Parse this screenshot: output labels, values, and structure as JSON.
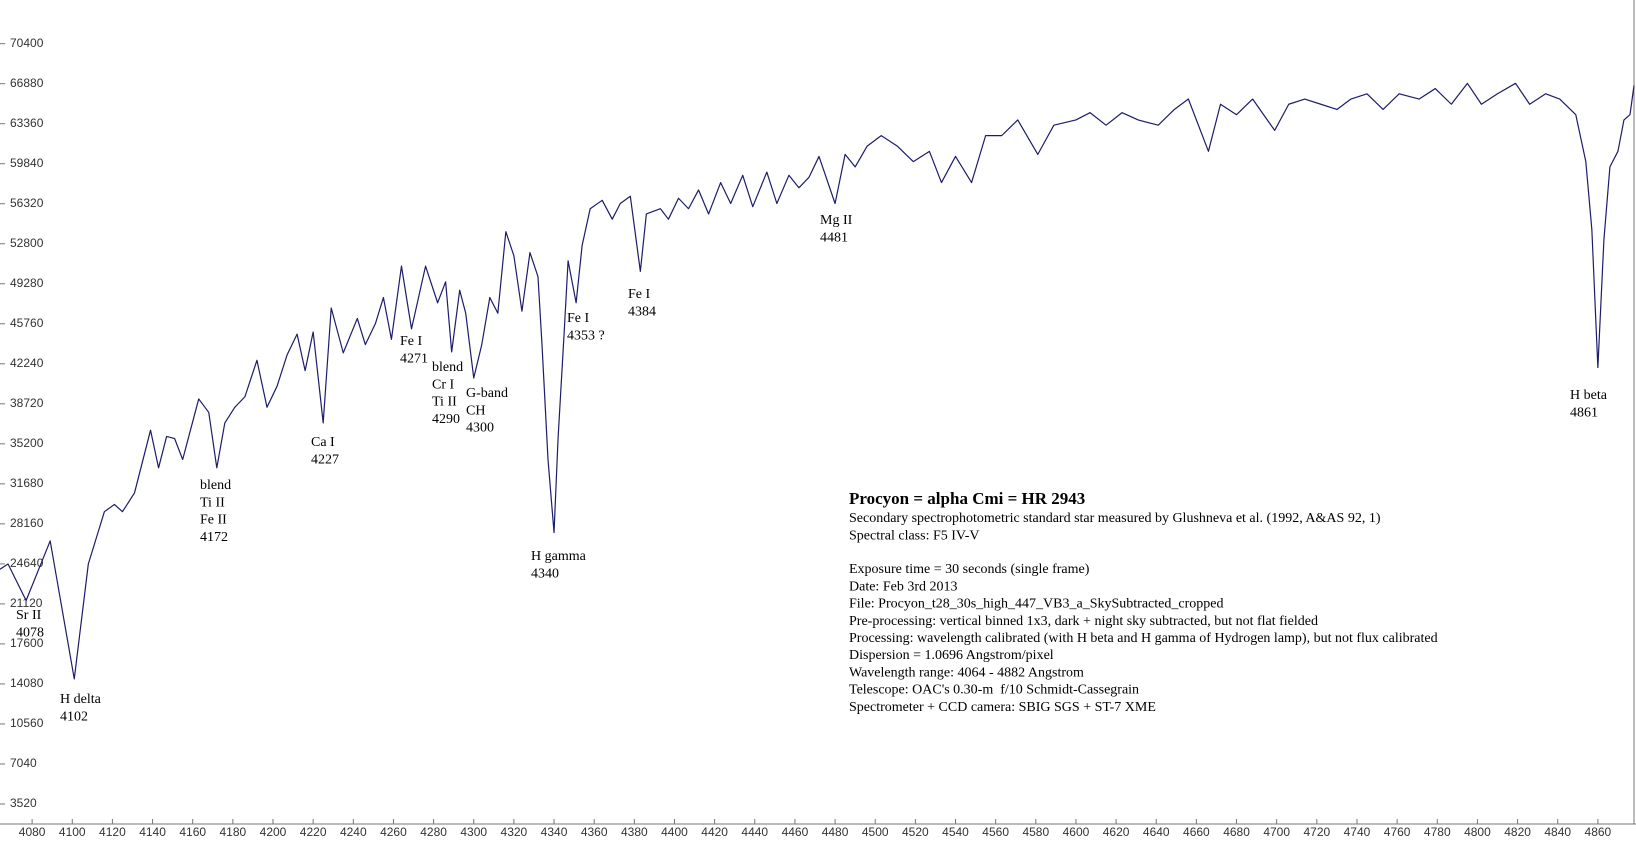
{
  "chart_data": {
    "type": "line",
    "color": "#1c1c6b",
    "xlim": [
      4064,
      4878
    ],
    "ylim": [
      1760,
      74240
    ],
    "xticks": [
      4080,
      4100,
      4120,
      4140,
      4160,
      4180,
      4200,
      4220,
      4240,
      4260,
      4280,
      4300,
      4320,
      4340,
      4360,
      4380,
      4400,
      4420,
      4440,
      4460,
      4480,
      4500,
      4520,
      4540,
      4560,
      4580,
      4600,
      4620,
      4640,
      4660,
      4680,
      4700,
      4720,
      4740,
      4760,
      4780,
      4800,
      4820,
      4840,
      4860
    ],
    "yticks": [
      3520,
      7040,
      10560,
      14080,
      17600,
      21120,
      24640,
      28160,
      31680,
      35200,
      38720,
      42240,
      45760,
      49280,
      52800,
      56320,
      59840,
      63360,
      66880,
      70400
    ],
    "x": [
      4064,
      4068,
      4077,
      4089,
      4101,
      4108,
      4116,
      4121,
      4125,
      4131,
      4139,
      4143,
      4147,
      4151,
      4155,
      4163,
      4168,
      4172,
      4176,
      4181,
      4186,
      4192,
      4197,
      4202,
      4207,
      4212,
      4216,
      4220,
      4225,
      4229,
      4235,
      4242,
      4246,
      4251,
      4255,
      4259,
      4264,
      4269,
      4276,
      4282,
      4286,
      4289,
      4293,
      4296,
      4300,
      4304,
      4308,
      4312,
      4316,
      4320,
      4324,
      4328,
      4332,
      4334,
      4337,
      4340,
      4342,
      4345,
      4347,
      4351,
      4354,
      4358,
      4364,
      4369,
      4373,
      4378,
      4383,
      4386,
      4393,
      4397,
      4402,
      4407,
      4412,
      4417,
      4423,
      4428,
      4434,
      4439,
      4446,
      4451,
      4457,
      4462,
      4467,
      4472,
      4480,
      4485,
      4490,
      4496,
      4503,
      4511,
      4519,
      4527,
      4533,
      4540,
      4548,
      4555,
      4563,
      4571,
      4581,
      4589,
      4600,
      4607,
      4615,
      4623,
      4631,
      4641,
      4649,
      4656,
      4666,
      4672,
      4680,
      4688,
      4699,
      4706,
      4714,
      4722,
      4730,
      4737,
      4745,
      4753,
      4761,
      4771,
      4779,
      4787,
      4795,
      4802,
      4810,
      4819,
      4826,
      4834,
      4841,
      4849,
      4854,
      4857,
      4860,
      4863,
      4866,
      4870,
      4873,
      4876,
      4878
    ],
    "values": [
      24170,
      24630,
      21420,
      26660,
      14520,
      24630,
      29230,
      29870,
      29230,
      30880,
      36400,
      33090,
      35850,
      35660,
      33820,
      39150,
      37960,
      33090,
      37040,
      38420,
      39340,
      42550,
      38420,
      40260,
      43010,
      44850,
      41640,
      45040,
      37040,
      47150,
      43200,
      46230,
      43930,
      45770,
      48070,
      44390,
      50830,
      45310,
      50830,
      47610,
      49450,
      43290,
      48710,
      46690,
      40990,
      43930,
      48070,
      46690,
      53860,
      51740,
      46870,
      52020,
      49910,
      43930,
      33820,
      27390,
      35660,
      44850,
      51290,
      47610,
      52660,
      55880,
      56620,
      54960,
      56340,
      56980,
      50370,
      55420,
      55880,
      54960,
      56800,
      55880,
      57530,
      55420,
      58180,
      56340,
      58820,
      56060,
      59100,
      56340,
      58820,
      57720,
      58640,
      60480,
      56340,
      60660,
      59560,
      61390,
      62310,
      61390,
      60020,
      60930,
      58180,
      60480,
      58180,
      62310,
      62310,
      63690,
      60660,
      63230,
      63690,
      64330,
      63230,
      64330,
      63690,
      63230,
      64610,
      65530,
      60930,
      65070,
      64150,
      65530,
      62770,
      65070,
      65530,
      65070,
      64610,
      65530,
      65990,
      64610,
      65990,
      65530,
      66450,
      65070,
      66910,
      65070,
      65990,
      66910,
      65070,
      65990,
      65530,
      64150,
      60020,
      54040,
      41910,
      53120,
      59560,
      60930,
      63690,
      64150,
      66720
    ],
    "annotations": [
      [
        "Sr II",
        "4078"
      ],
      [
        "H delta",
        "4102"
      ],
      [
        "blend",
        "Ti II",
        "Fe II",
        "4172"
      ],
      [
        "Ca I",
        "4227"
      ],
      [
        "Fe I",
        "4271"
      ],
      [
        "blend",
        "Cr I",
        "Ti II",
        "4290"
      ],
      [
        "G-band",
        "CH",
        "4300"
      ],
      [
        "H gamma",
        "4340"
      ],
      [
        "Fe I",
        "4353 ?"
      ],
      [
        "Fe I",
        "4384"
      ],
      [
        "Mg II",
        "4481"
      ],
      [
        "H beta",
        "4861"
      ]
    ],
    "info": {
      "title": "Procyon = alpha Cmi = HR 2943",
      "lines": [
        "Secondary spectrophotometric standard star measured by Glushneva et al. (1992, A&AS 92, 1)",
        "Spectral class: F5 IV-V"
      ],
      "details": [
        "Exposure time = 30 seconds (single frame)",
        "Date: Feb 3rd 2013",
        "File: Procyon_t28_30s_high_447_VB3_a_SkySubtracted_cropped",
        "Pre-processing: vertical binned 1x3, dark + night sky subtracted, but not flat fielded",
        "Processing: wavelength calibrated (with H beta and H gamma of Hydrogen lamp), but not flux calibrated",
        "Dispersion = 1.0696 Angstrom/pixel",
        "Wavelength range: 4064 - 4882 Angstrom",
        "Telescope: OAC's 0.30-m  f/10 Schmidt-Cassegrain",
        "Spectrometer + CCD camera: SBIG SGS + ST-7 XME"
      ]
    }
  }
}
